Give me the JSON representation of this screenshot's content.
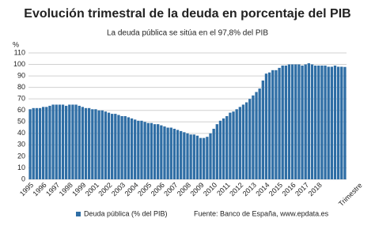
{
  "chart_data": {
    "type": "bar",
    "title": "Evolución trimestral de la deuda en porcentaje del PIB",
    "subtitle": "La deuda pública se sitúa en el 97,8% del PIB",
    "y_label": "%",
    "x_label": "Trimestre",
    "source": "Fuente: Banco de España, www.epdata.es",
    "categories": [
      "1995",
      null,
      null,
      null,
      "1996",
      null,
      null,
      null,
      "1997",
      null,
      null,
      null,
      "1998",
      null,
      null,
      null,
      "1999",
      null,
      null,
      null,
      "2001",
      null,
      null,
      null,
      "2002",
      null,
      null,
      null,
      "2003",
      null,
      null,
      null,
      "2004",
      null,
      null,
      null,
      "2005",
      null,
      null,
      null,
      "2006",
      null,
      null,
      null,
      "2007",
      null,
      null,
      null,
      "2008",
      null,
      null,
      null,
      "2009",
      null,
      null,
      null,
      "2010",
      null,
      null,
      null,
      "2011",
      null,
      null,
      null,
      "2012",
      null,
      null,
      null,
      "2013",
      null,
      null,
      null,
      "2014",
      null,
      null,
      null,
      "2015",
      null,
      null,
      null,
      "2016",
      null,
      null,
      null,
      "2017",
      null,
      null,
      null,
      "2018",
      null,
      null,
      null,
      null,
      null,
      null,
      null,
      null
    ],
    "series": [
      {
        "name": "Deuda pública (% del PIB)",
        "color": "#2f6ea5",
        "values": [
          61,
          62,
          62,
          62,
          63,
          63,
          64,
          65,
          65,
          65,
          65,
          64,
          65,
          65,
          65,
          64,
          63,
          62,
          62,
          61,
          61,
          60,
          60,
          59,
          58,
          57,
          57,
          56,
          55,
          55,
          54,
          53,
          52,
          51,
          51,
          50,
          49,
          49,
          48,
          48,
          47,
          46,
          45,
          45,
          44,
          43,
          42,
          41,
          40,
          39,
          39,
          38,
          36,
          36,
          37,
          40,
          44,
          48,
          51,
          53,
          55,
          58,
          59,
          61,
          63,
          65,
          67,
          70,
          73,
          76,
          79,
          86,
          92,
          93,
          95,
          95,
          97,
          99,
          99,
          100,
          100,
          100,
          100,
          99,
          100,
          101,
          100,
          99,
          99,
          99,
          99,
          98,
          98,
          99,
          98,
          98,
          97.8
        ]
      }
    ],
    "ylim": [
      0,
      110
    ],
    "yticks": [
      0,
      10,
      20,
      30,
      40,
      50,
      60,
      70,
      80,
      90,
      100,
      110
    ],
    "grid": true
  }
}
